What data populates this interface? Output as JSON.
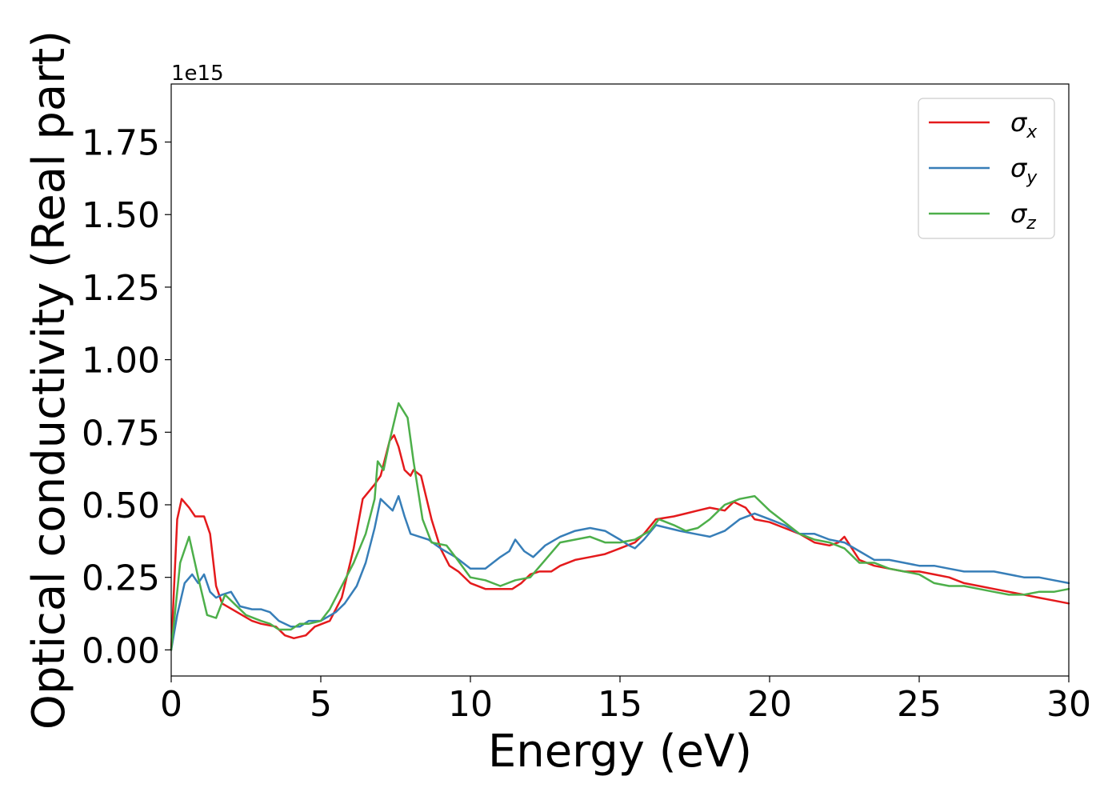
{
  "chart_data": {
    "type": "line",
    "title": "",
    "xlabel": "Energy (eV)",
    "ylabel": "Optical conductivity (Real part)",
    "y_offset_label": "1e15",
    "y_scale": 1000000000000000.0,
    "xlim": [
      0,
      30
    ],
    "ylim": [
      -0.09,
      1.95
    ],
    "x_ticks": [
      0,
      5,
      10,
      15,
      20,
      25,
      30
    ],
    "x_tick_labels": [
      "0",
      "5",
      "10",
      "15",
      "20",
      "25",
      "30"
    ],
    "y_ticks": [
      0.0,
      0.25,
      0.5,
      0.75,
      1.0,
      1.25,
      1.5,
      1.75
    ],
    "y_tick_labels": [
      "0.00",
      "0.25",
      "0.50",
      "0.75",
      "1.00",
      "1.25",
      "1.50",
      "1.75"
    ],
    "grid": false,
    "legend_position": "top-right",
    "series": [
      {
        "name": "σ_x",
        "label_main": "σ",
        "label_sub": "x",
        "color": "#e41a1c",
        "points": [
          [
            0,
            0
          ],
          [
            0.2,
            0.45
          ],
          [
            0.35,
            0.52
          ],
          [
            0.6,
            0.49
          ],
          [
            0.8,
            0.46
          ],
          [
            1.1,
            0.46
          ],
          [
            1.3,
            0.4
          ],
          [
            1.5,
            0.22
          ],
          [
            1.7,
            0.16
          ],
          [
            2.2,
            0.13
          ],
          [
            2.7,
            0.1
          ],
          [
            3.0,
            0.09
          ],
          [
            3.5,
            0.08
          ],
          [
            3.8,
            0.05
          ],
          [
            4.1,
            0.04
          ],
          [
            4.5,
            0.05
          ],
          [
            4.8,
            0.08
          ],
          [
            5.3,
            0.1
          ],
          [
            5.7,
            0.18
          ],
          [
            6.1,
            0.35
          ],
          [
            6.4,
            0.52
          ],
          [
            6.8,
            0.57
          ],
          [
            7.0,
            0.6
          ],
          [
            7.3,
            0.72
          ],
          [
            7.45,
            0.74
          ],
          [
            7.6,
            0.7
          ],
          [
            7.8,
            0.62
          ],
          [
            8.0,
            0.6
          ],
          [
            8.1,
            0.62
          ],
          [
            8.35,
            0.6
          ],
          [
            8.7,
            0.45
          ],
          [
            9.0,
            0.35
          ],
          [
            9.3,
            0.29
          ],
          [
            9.6,
            0.27
          ],
          [
            10.0,
            0.23
          ],
          [
            10.5,
            0.21
          ],
          [
            11.0,
            0.21
          ],
          [
            11.4,
            0.21
          ],
          [
            11.7,
            0.23
          ],
          [
            12.0,
            0.26
          ],
          [
            12.3,
            0.27
          ],
          [
            12.7,
            0.27
          ],
          [
            13.0,
            0.29
          ],
          [
            13.5,
            0.31
          ],
          [
            14.0,
            0.32
          ],
          [
            14.5,
            0.33
          ],
          [
            15.0,
            0.35
          ],
          [
            15.5,
            0.37
          ],
          [
            15.8,
            0.4
          ],
          [
            16.2,
            0.45
          ],
          [
            16.8,
            0.46
          ],
          [
            17.2,
            0.47
          ],
          [
            17.6,
            0.48
          ],
          [
            18.0,
            0.49
          ],
          [
            18.5,
            0.48
          ],
          [
            18.8,
            0.51
          ],
          [
            19.2,
            0.49
          ],
          [
            19.5,
            0.45
          ],
          [
            20.0,
            0.44
          ],
          [
            20.5,
            0.42
          ],
          [
            21.0,
            0.4
          ],
          [
            21.5,
            0.37
          ],
          [
            22.0,
            0.36
          ],
          [
            22.3,
            0.37
          ],
          [
            22.5,
            0.39
          ],
          [
            23.0,
            0.31
          ],
          [
            23.5,
            0.29
          ],
          [
            24.0,
            0.28
          ],
          [
            24.5,
            0.27
          ],
          [
            25.0,
            0.27
          ],
          [
            25.5,
            0.26
          ],
          [
            26.0,
            0.25
          ],
          [
            26.5,
            0.23
          ],
          [
            27.0,
            0.22
          ],
          [
            27.5,
            0.21
          ],
          [
            28.0,
            0.2
          ],
          [
            28.5,
            0.19
          ],
          [
            29.0,
            0.18
          ],
          [
            29.5,
            0.17
          ],
          [
            30.0,
            0.16
          ]
        ]
      },
      {
        "name": "σ_y",
        "label_main": "σ",
        "label_sub": "y",
        "color": "#377eb8",
        "points": [
          [
            0,
            0
          ],
          [
            0.2,
            0.12
          ],
          [
            0.45,
            0.23
          ],
          [
            0.7,
            0.26
          ],
          [
            0.9,
            0.23
          ],
          [
            1.1,
            0.26
          ],
          [
            1.3,
            0.2
          ],
          [
            1.5,
            0.18
          ],
          [
            1.7,
            0.19
          ],
          [
            2.0,
            0.2
          ],
          [
            2.3,
            0.15
          ],
          [
            2.7,
            0.14
          ],
          [
            3.0,
            0.14
          ],
          [
            3.3,
            0.13
          ],
          [
            3.6,
            0.1
          ],
          [
            4.0,
            0.08
          ],
          [
            4.3,
            0.08
          ],
          [
            4.6,
            0.1
          ],
          [
            5.0,
            0.1
          ],
          [
            5.5,
            0.13
          ],
          [
            5.8,
            0.16
          ],
          [
            6.2,
            0.22
          ],
          [
            6.5,
            0.3
          ],
          [
            6.8,
            0.42
          ],
          [
            7.0,
            0.52
          ],
          [
            7.2,
            0.5
          ],
          [
            7.4,
            0.48
          ],
          [
            7.6,
            0.53
          ],
          [
            7.8,
            0.46
          ],
          [
            8.0,
            0.4
          ],
          [
            8.3,
            0.39
          ],
          [
            8.6,
            0.38
          ],
          [
            9.0,
            0.35
          ],
          [
            9.5,
            0.32
          ],
          [
            10.0,
            0.28
          ],
          [
            10.5,
            0.28
          ],
          [
            11.0,
            0.32
          ],
          [
            11.3,
            0.34
          ],
          [
            11.5,
            0.38
          ],
          [
            11.8,
            0.34
          ],
          [
            12.1,
            0.32
          ],
          [
            12.5,
            0.36
          ],
          [
            13.0,
            0.39
          ],
          [
            13.5,
            0.41
          ],
          [
            14.0,
            0.42
          ],
          [
            14.5,
            0.41
          ],
          [
            15.0,
            0.38
          ],
          [
            15.3,
            0.36
          ],
          [
            15.5,
            0.35
          ],
          [
            15.8,
            0.38
          ],
          [
            16.2,
            0.43
          ],
          [
            16.6,
            0.42
          ],
          [
            17.0,
            0.41
          ],
          [
            17.5,
            0.4
          ],
          [
            18.0,
            0.39
          ],
          [
            18.5,
            0.41
          ],
          [
            19.0,
            0.45
          ],
          [
            19.5,
            0.47
          ],
          [
            20.0,
            0.45
          ],
          [
            20.5,
            0.43
          ],
          [
            21.0,
            0.4
          ],
          [
            21.5,
            0.4
          ],
          [
            22.0,
            0.38
          ],
          [
            22.5,
            0.37
          ],
          [
            23.0,
            0.34
          ],
          [
            23.5,
            0.31
          ],
          [
            24.0,
            0.31
          ],
          [
            24.5,
            0.3
          ],
          [
            25.0,
            0.29
          ],
          [
            25.5,
            0.29
          ],
          [
            26.0,
            0.28
          ],
          [
            26.5,
            0.27
          ],
          [
            27.0,
            0.27
          ],
          [
            27.5,
            0.27
          ],
          [
            28.0,
            0.26
          ],
          [
            28.5,
            0.25
          ],
          [
            29.0,
            0.25
          ],
          [
            29.5,
            0.24
          ],
          [
            30.0,
            0.23
          ]
        ]
      },
      {
        "name": "σ_z",
        "label_main": "σ",
        "label_sub": "z",
        "color": "#4daf4a",
        "points": [
          [
            0,
            0
          ],
          [
            0.3,
            0.3
          ],
          [
            0.6,
            0.39
          ],
          [
            0.9,
            0.25
          ],
          [
            1.2,
            0.12
          ],
          [
            1.5,
            0.11
          ],
          [
            1.8,
            0.19
          ],
          [
            2.1,
            0.16
          ],
          [
            2.5,
            0.12
          ],
          [
            3.0,
            0.1
          ],
          [
            3.3,
            0.09
          ],
          [
            3.6,
            0.07
          ],
          [
            4.0,
            0.07
          ],
          [
            4.3,
            0.09
          ],
          [
            4.6,
            0.09
          ],
          [
            5.0,
            0.1
          ],
          [
            5.3,
            0.14
          ],
          [
            5.7,
            0.22
          ],
          [
            6.1,
            0.3
          ],
          [
            6.5,
            0.4
          ],
          [
            6.8,
            0.52
          ],
          [
            6.9,
            0.65
          ],
          [
            7.1,
            0.62
          ],
          [
            7.3,
            0.72
          ],
          [
            7.6,
            0.85
          ],
          [
            7.9,
            0.8
          ],
          [
            8.1,
            0.65
          ],
          [
            8.4,
            0.45
          ],
          [
            8.7,
            0.37
          ],
          [
            9.2,
            0.36
          ],
          [
            9.5,
            0.32
          ],
          [
            10.0,
            0.25
          ],
          [
            10.5,
            0.24
          ],
          [
            11.0,
            0.22
          ],
          [
            11.5,
            0.24
          ],
          [
            12.0,
            0.25
          ],
          [
            12.5,
            0.31
          ],
          [
            13.0,
            0.37
          ],
          [
            13.5,
            0.38
          ],
          [
            14.0,
            0.39
          ],
          [
            14.5,
            0.37
          ],
          [
            15.0,
            0.37
          ],
          [
            15.5,
            0.38
          ],
          [
            16.0,
            0.41
          ],
          [
            16.3,
            0.45
          ],
          [
            16.8,
            0.43
          ],
          [
            17.2,
            0.41
          ],
          [
            17.6,
            0.42
          ],
          [
            18.0,
            0.45
          ],
          [
            18.5,
            0.5
          ],
          [
            19.0,
            0.52
          ],
          [
            19.5,
            0.53
          ],
          [
            20.0,
            0.48
          ],
          [
            20.5,
            0.44
          ],
          [
            21.0,
            0.4
          ],
          [
            21.5,
            0.38
          ],
          [
            22.0,
            0.37
          ],
          [
            22.5,
            0.35
          ],
          [
            23.0,
            0.3
          ],
          [
            23.5,
            0.3
          ],
          [
            24.0,
            0.28
          ],
          [
            24.5,
            0.27
          ],
          [
            25.0,
            0.26
          ],
          [
            25.5,
            0.23
          ],
          [
            26.0,
            0.22
          ],
          [
            26.5,
            0.22
          ],
          [
            27.0,
            0.21
          ],
          [
            27.5,
            0.2
          ],
          [
            28.0,
            0.19
          ],
          [
            28.5,
            0.19
          ],
          [
            29.0,
            0.2
          ],
          [
            29.5,
            0.2
          ],
          [
            30.0,
            0.21
          ]
        ]
      }
    ]
  }
}
